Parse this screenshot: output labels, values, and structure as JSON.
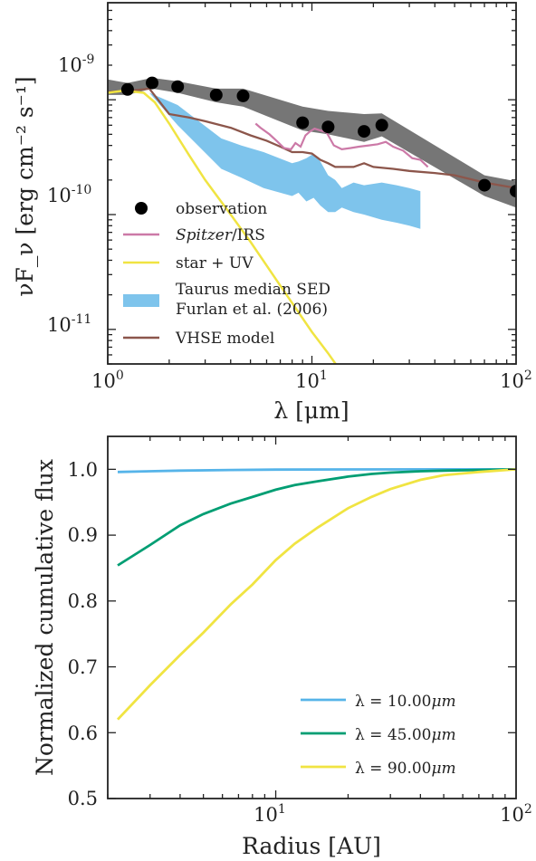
{
  "chart_data": [
    {
      "type": "line",
      "title": "",
      "xlabel": "λ [μm]",
      "ylabel": "νF_ν [erg cm⁻² s⁻¹]",
      "xscale": "log",
      "yscale": "log",
      "xlim": [
        1,
        100
      ],
      "ylim": [
        5e-12,
        7e-09
      ],
      "xticks": [
        {
          "value": 1,
          "label": "10^0"
        },
        {
          "value": 10,
          "label": "10^1"
        },
        {
          "value": 100,
          "label": "10^2"
        }
      ],
      "yticks": [
        {
          "value": 1e-11,
          "label": "10^-11"
        },
        {
          "value": 1e-10,
          "label": "10^-10"
        },
        {
          "value": 1e-09,
          "label": "10^-9"
        }
      ],
      "legend_position": "lower-left",
      "colors": {
        "observation": "#000000",
        "observation_band": "#6f6f6f",
        "spitzer": "#cc79a7",
        "star": "#f0e442",
        "taurus": "#7ec4ec",
        "vhse": "#8c564b"
      },
      "series": [
        {
          "name": "observation",
          "kind": "scatter",
          "x": [
            1.25,
            1.65,
            2.2,
            3.4,
            4.6,
            9.0,
            12.0,
            18.0,
            22.0,
            70.0,
            100.0
          ],
          "y": [
            1.23e-09,
            1.4e-09,
            1.3e-09,
            1.1e-09,
            1.08e-09,
            6.3e-10,
            5.8e-10,
            5.3e-10,
            6e-10,
            1.8e-10,
            1.6e-10
          ]
        },
        {
          "name": "observation uncertainty",
          "kind": "band",
          "x": [
            1.0,
            1.25,
            1.65,
            2.2,
            3.4,
            4.6,
            9.0,
            12.0,
            18.0,
            22.0,
            70.0,
            100.0
          ],
          "y_low": [
            1.1e-09,
            1.1e-09,
            1.25e-09,
            1.15e-09,
            9.5e-10,
            8.7e-10,
            5.4e-10,
            5e-10,
            4.3e-10,
            4.8e-10,
            1.45e-10,
            1.15e-10
          ],
          "y_high": [
            1.5e-09,
            1.4e-09,
            1.55e-09,
            1.45e-09,
            1.25e-09,
            1.25e-09,
            8.7e-10,
            8e-10,
            7.5e-10,
            7.6e-10,
            2.2e-10,
            1.95e-10
          ]
        },
        {
          "name": "Spitzer/IRS",
          "kind": "line",
          "x": [
            5.3,
            5.6,
            6.2,
            6.8,
            7.3,
            7.9,
            8.3,
            8.8,
            9.3,
            9.8,
            10.3,
            11.0,
            11.8,
            12.8,
            14.0,
            15.5,
            17.0,
            19.0,
            21.0,
            23.0,
            25.0,
            28.0,
            31.0,
            34.0,
            37.0
          ],
          "y": [
            6.2e-10,
            5.7e-10,
            5e-10,
            4.3e-10,
            3.8e-10,
            3.7e-10,
            4.2e-10,
            3.9e-10,
            4.9e-10,
            5.3e-10,
            5.6e-10,
            5.4e-10,
            5.2e-10,
            4e-10,
            3.7e-10,
            3.8e-10,
            3.9e-10,
            4e-10,
            4.1e-10,
            4.3e-10,
            3.9e-10,
            3.6e-10,
            3.1e-10,
            3e-10,
            2.6e-10
          ]
        },
        {
          "name": "star + UV",
          "kind": "line",
          "x": [
            1.0,
            1.2,
            1.5,
            1.7,
            2.0,
            2.5,
            3.0,
            4.0,
            5.0,
            6.0,
            7.0,
            8.0,
            10.0,
            12.0,
            14.0
          ],
          "y": [
            1.15e-09,
            1.2e-09,
            1.15e-09,
            9.5e-10,
            6.2e-10,
            3.3e-10,
            2e-10,
            1e-10,
            5.8e-11,
            3.6e-11,
            2.4e-11,
            1.7e-11,
            9.5e-12,
            6.2e-12,
            4.2e-12
          ]
        },
        {
          "name": "Taurus median SED Furlan et al. (2006)",
          "kind": "band",
          "x": [
            1.6,
            2.2,
            3.6,
            4.5,
            5.8,
            8.0,
            8.6,
            9.4,
            10.2,
            11.0,
            12.0,
            13.0,
            14.0,
            16.0,
            18.0,
            22.0,
            26.0,
            30.0,
            34.0
          ],
          "y_low": [
            1.15e-09,
            6e-10,
            2.5e-10,
            2.1e-10,
            1.7e-10,
            1.45e-10,
            1.55e-10,
            1.3e-10,
            1.4e-10,
            1.2e-10,
            1.05e-10,
            1.05e-10,
            1.15e-10,
            1.05e-10,
            1e-10,
            9e-11,
            8.5e-11,
            8e-11,
            7.5e-11
          ],
          "y_high": [
            1.15e-09,
            9e-10,
            4.6e-10,
            4e-10,
            3.5e-10,
            2.8e-10,
            2.9e-10,
            3.1e-10,
            3.4e-10,
            2.9e-10,
            2.2e-10,
            2e-10,
            1.7e-10,
            1.9e-10,
            1.8e-10,
            1.9e-10,
            1.8e-10,
            1.7e-10,
            1.6e-10
          ]
        },
        {
          "name": "VHSE model",
          "kind": "line",
          "x": [
            1.0,
            1.3,
            1.6,
            2.0,
            2.5,
            3.0,
            4.0,
            5.0,
            6.0,
            7.0,
            8.0,
            9.0,
            10.0,
            11.0,
            12.0,
            13.0,
            14.0,
            16.0,
            18.0,
            20.0,
            25.0,
            30.0,
            40.0,
            50.0,
            70.0,
            100.0
          ],
          "y": [
            1.17e-09,
            1.2e-09,
            1.25e-09,
            7.5e-10,
            7e-10,
            6.5e-10,
            5.7e-10,
            4.9e-10,
            4.4e-10,
            3.9e-10,
            3.5e-10,
            3.5e-10,
            3.4e-10,
            3e-10,
            2.8e-10,
            2.6e-10,
            2.6e-10,
            2.6e-10,
            2.8e-10,
            2.6e-10,
            2.5e-10,
            2.4e-10,
            2.3e-10,
            2.2e-10,
            1.9e-10,
            1.7e-10
          ]
        }
      ],
      "legend": [
        {
          "label": "observation",
          "kind": "marker",
          "color": "#000000"
        },
        {
          "label_italic": "Spitzer",
          "label_rest": "/IRS",
          "kind": "line",
          "color": "#cc79a7"
        },
        {
          "label": "star + UV",
          "kind": "line",
          "color": "#f0e442"
        },
        {
          "label": "Taurus median SED",
          "label2": "Furlan et al. (2006)",
          "kind": "patch",
          "color": "#7ec4ec"
        },
        {
          "label": "VHSE model",
          "kind": "line",
          "color": "#8c564b"
        }
      ]
    },
    {
      "type": "line",
      "title": "",
      "xlabel": "Radius [AU]",
      "ylabel": "Normalized cumulative flux",
      "xscale": "log",
      "yscale": "linear",
      "xlim": [
        2.0,
        100
      ],
      "ylim": [
        0.5,
        1.05
      ],
      "xticks": [
        {
          "value": 10,
          "label": "10^1"
        },
        {
          "value": 100,
          "label": "10^2"
        }
      ],
      "yticks": [
        0.5,
        0.6,
        0.7,
        0.8,
        0.9,
        1.0
      ],
      "ytick_labels": [
        "0.5",
        "0.6",
        "0.7",
        "0.8",
        "0.9",
        "1.0"
      ],
      "legend_position": "lower-right",
      "series": [
        {
          "name_prefix": "λ = ",
          "name_value": "10.00",
          "name_unit": "μm",
          "color": "#56b4e9",
          "x": [
            2.2,
            3.0,
            4.0,
            6.5,
            10.0,
            20.0,
            50.0,
            100.0
          ],
          "y": [
            0.996,
            0.997,
            0.998,
            0.999,
            0.9995,
            0.9998,
            1.0,
            1.0
          ]
        },
        {
          "name_prefix": "λ = ",
          "name_value": "45.00",
          "name_unit": "μm",
          "color": "#009e73",
          "x": [
            2.2,
            3.0,
            4.0,
            5.0,
            6.5,
            8.0,
            10.0,
            12.0,
            15.0,
            20.0,
            25.0,
            30.0,
            40.0,
            50.0,
            70.0,
            100.0
          ],
          "y": [
            0.854,
            0.885,
            0.915,
            0.932,
            0.948,
            0.958,
            0.969,
            0.976,
            0.982,
            0.989,
            0.993,
            0.995,
            0.997,
            0.998,
            0.999,
            1.0
          ]
        },
        {
          "name_prefix": "λ = ",
          "name_value": "90.00",
          "name_unit": "μm",
          "color": "#f0e442",
          "x": [
            2.2,
            3.0,
            4.0,
            5.0,
            6.5,
            8.0,
            10.0,
            12.0,
            15.0,
            20.0,
            25.0,
            30.0,
            40.0,
            50.0,
            70.0,
            100.0
          ],
          "y": [
            0.62,
            0.672,
            0.718,
            0.752,
            0.795,
            0.825,
            0.862,
            0.887,
            0.912,
            0.941,
            0.958,
            0.97,
            0.984,
            0.991,
            0.996,
            1.0
          ]
        }
      ]
    }
  ]
}
